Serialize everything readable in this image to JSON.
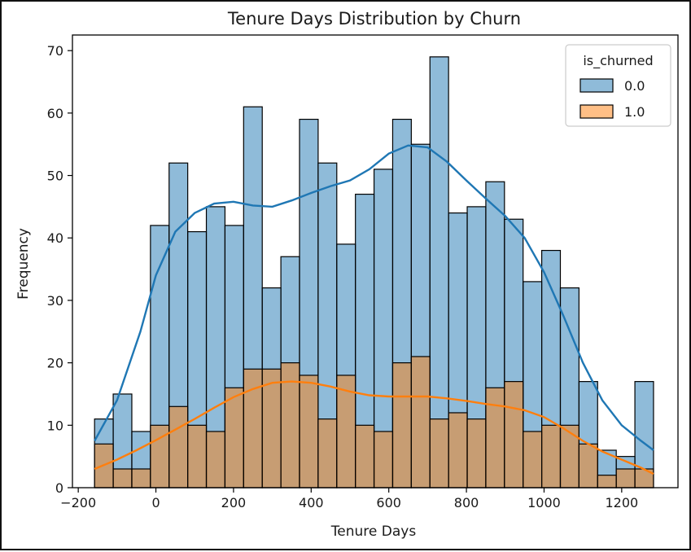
{
  "chart_data": {
    "type": "bar",
    "title": "Tenure Days Distribution by Churn",
    "xlabel": "Tenure Days",
    "ylabel": "Frequency",
    "xlim": [
      -215,
      1345
    ],
    "ylim": [
      0,
      72.5
    ],
    "xticks": [
      -200,
      0,
      200,
      400,
      600,
      800,
      1000,
      1200
    ],
    "xtick_labels": [
      "−200",
      "0",
      "200",
      "400",
      "600",
      "800",
      "1000",
      "1200"
    ],
    "yticks": [
      0,
      10,
      20,
      30,
      40,
      50,
      60,
      70
    ],
    "ytick_labels": [
      "0",
      "10",
      "20",
      "30",
      "40",
      "50",
      "60",
      "70"
    ],
    "bin_edges": [
      -158,
      -110,
      -62,
      -14,
      34,
      82,
      130,
      178,
      226,
      274,
      322,
      370,
      418,
      466,
      514,
      562,
      610,
      658,
      706,
      754,
      802,
      850,
      898,
      946,
      994,
      1042,
      1090,
      1138,
      1186,
      1234,
      1282
    ],
    "grid": false,
    "legend": {
      "title": "is_churned",
      "position": "top-right"
    },
    "series": [
      {
        "name": "0.0",
        "color": "#1f77b4",
        "fill": "#8fb9d9",
        "counts": [
          11,
          15,
          9,
          42,
          52,
          41,
          45,
          42,
          61,
          32,
          37,
          59,
          52,
          39,
          47,
          51,
          59,
          55,
          69,
          44,
          45,
          49,
          43,
          33,
          38,
          32,
          17,
          6,
          5,
          17
        ],
        "kde": [
          [
            -158,
            7.5
          ],
          [
            -100,
            14
          ],
          [
            -40,
            25
          ],
          [
            0,
            34
          ],
          [
            50,
            41
          ],
          [
            100,
            44
          ],
          [
            150,
            45.5
          ],
          [
            200,
            45.8
          ],
          [
            250,
            45.2
          ],
          [
            300,
            45
          ],
          [
            350,
            46
          ],
          [
            400,
            47.2
          ],
          [
            450,
            48.3
          ],
          [
            500,
            49.2
          ],
          [
            550,
            51
          ],
          [
            600,
            53.5
          ],
          [
            650,
            54.8
          ],
          [
            700,
            54.5
          ],
          [
            750,
            52.2
          ],
          [
            800,
            49.2
          ],
          [
            850,
            46.3
          ],
          [
            900,
            43.5
          ],
          [
            950,
            40
          ],
          [
            1000,
            34.5
          ],
          [
            1050,
            27.5
          ],
          [
            1100,
            20
          ],
          [
            1150,
            14
          ],
          [
            1200,
            10
          ],
          [
            1250,
            7.5
          ],
          [
            1282,
            6
          ]
        ]
      },
      {
        "name": "1.0",
        "color": "#ff7f0e",
        "fill": "#ffbb78",
        "counts": [
          7,
          3,
          3,
          10,
          13,
          10,
          9,
          16,
          19,
          19,
          20,
          18,
          11,
          18,
          10,
          9,
          20,
          21,
          11,
          12,
          11,
          16,
          17,
          9,
          10,
          10,
          7,
          2,
          3,
          3
        ],
        "kde": [
          [
            -158,
            3
          ],
          [
            -100,
            4.5
          ],
          [
            -50,
            6
          ],
          [
            0,
            7.6
          ],
          [
            50,
            9.3
          ],
          [
            100,
            11
          ],
          [
            150,
            12.8
          ],
          [
            200,
            14.5
          ],
          [
            250,
            15.8
          ],
          [
            300,
            16.8
          ],
          [
            350,
            17
          ],
          [
            400,
            16.8
          ],
          [
            450,
            16.2
          ],
          [
            500,
            15.4
          ],
          [
            550,
            14.8
          ],
          [
            600,
            14.6
          ],
          [
            650,
            14.6
          ],
          [
            700,
            14.6
          ],
          [
            750,
            14.3
          ],
          [
            800,
            13.9
          ],
          [
            850,
            13.4
          ],
          [
            900,
            13
          ],
          [
            950,
            12.4
          ],
          [
            1000,
            11.3
          ],
          [
            1050,
            9.5
          ],
          [
            1100,
            7.5
          ],
          [
            1150,
            5.8
          ],
          [
            1200,
            4.5
          ],
          [
            1250,
            3.2
          ],
          [
            1282,
            2.2
          ]
        ]
      }
    ]
  }
}
